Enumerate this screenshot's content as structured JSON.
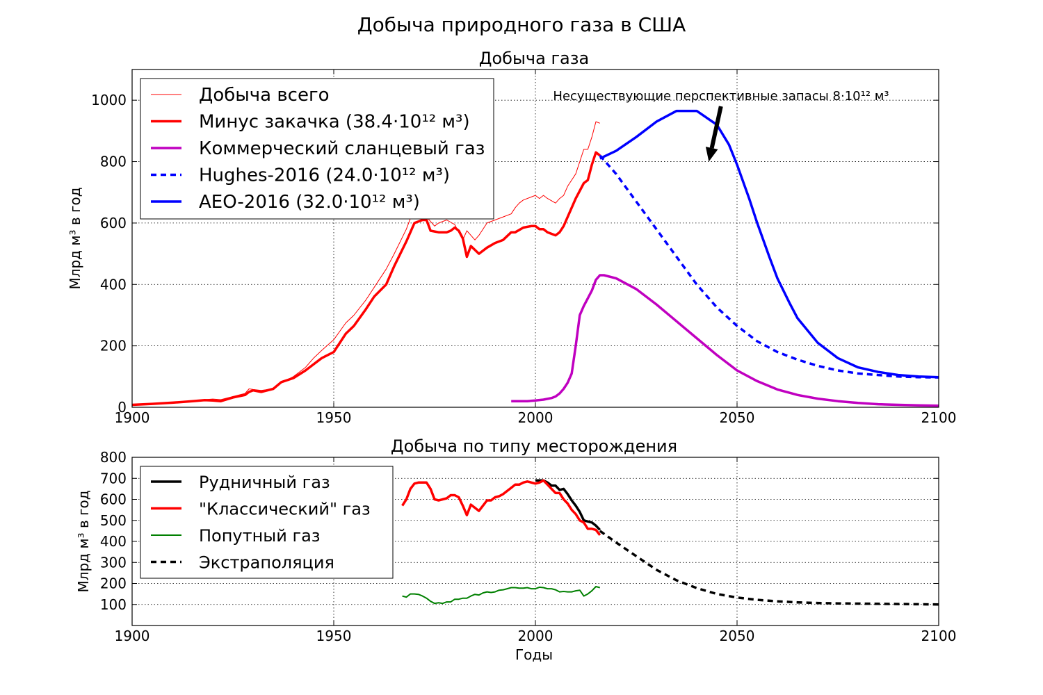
{
  "figure": {
    "title": "Добыча природного газа в США"
  },
  "chart_data": [
    {
      "type": "line",
      "title": "Добыча газа",
      "xlabel": "",
      "ylabel": "Млрд м³ в год",
      "xlim": [
        1900,
        2100
      ],
      "ylim": [
        0,
        1100
      ],
      "xticks": [
        1900,
        1950,
        2000,
        2050,
        2100
      ],
      "yticks": [
        0,
        200,
        400,
        600,
        800,
        1000
      ],
      "grid": true,
      "legend_position": "top-left",
      "annotation": {
        "text": "Несуществующие перспективные запасы 8·10¹² м³",
        "arrow_from": [
          2046,
          980
        ],
        "arrow_to": [
          2043,
          800
        ]
      },
      "series": [
        {
          "name": "Добыча всего",
          "color": "#ff0000",
          "width": 1,
          "dash": "solid",
          "x": [
            1900,
            1905,
            1910,
            1915,
            1918,
            1920,
            1922,
            1925,
            1928,
            1929,
            1930,
            1932,
            1935,
            1937,
            1940,
            1943,
            1945,
            1947,
            1950,
            1953,
            1955,
            1958,
            1960,
            1963,
            1965,
            1968,
            1970,
            1971,
            1972,
            1973,
            1975,
            1976,
            1978,
            1980,
            1982,
            1983,
            1984,
            1985,
            1986,
            1988,
            1990,
            1992,
            1994,
            1995,
            1996,
            1997,
            2000,
            2001,
            2002,
            2003,
            2005,
            2006,
            2007,
            2008,
            2010,
            2012,
            2013,
            2014,
            2015,
            2016
          ],
          "y": [
            8,
            11,
            15,
            20,
            25,
            27,
            25,
            35,
            45,
            60,
            58,
            55,
            60,
            80,
            100,
            130,
            160,
            185,
            220,
            275,
            300,
            350,
            390,
            450,
            500,
            580,
            650,
            640,
            630,
            620,
            590,
            600,
            610,
            595,
            545,
            575,
            560,
            545,
            560,
            600,
            610,
            620,
            630,
            650,
            665,
            675,
            690,
            680,
            690,
            680,
            665,
            680,
            690,
            720,
            760,
            840,
            840,
            880,
            930,
            925
          ]
        },
        {
          "name": "Минус закачка (38.4·10¹² м³)",
          "color": "#ff0000",
          "width": 3.5,
          "dash": "solid",
          "x": [
            1900,
            1905,
            1910,
            1915,
            1918,
            1920,
            1922,
            1925,
            1928,
            1929,
            1930,
            1932,
            1935,
            1937,
            1940,
            1943,
            1945,
            1947,
            1950,
            1953,
            1955,
            1958,
            1960,
            1963,
            1965,
            1968,
            1970,
            1971,
            1972,
            1973,
            1974,
            1976,
            1978,
            1979,
            1980,
            1981,
            1982,
            1983,
            1984,
            1986,
            1988,
            1990,
            1992,
            1994,
            1995,
            1997,
            1999,
            2000,
            2001,
            2002,
            2003,
            2005,
            2006,
            2007,
            2008,
            2010,
            2012,
            2013,
            2014,
            2015,
            2016
          ],
          "y": [
            8,
            11,
            15,
            20,
            23,
            22,
            20,
            32,
            40,
            50,
            55,
            50,
            60,
            82,
            95,
            120,
            140,
            160,
            180,
            240,
            265,
            320,
            360,
            400,
            460,
            540,
            600,
            605,
            610,
            610,
            575,
            570,
            570,
            575,
            585,
            575,
            550,
            490,
            525,
            500,
            520,
            535,
            545,
            570,
            570,
            585,
            590,
            590,
            580,
            580,
            570,
            560,
            570,
            590,
            620,
            680,
            730,
            740,
            790,
            830,
            820
          ]
        },
        {
          "name": "Коммерческий сланцевый газ",
          "color": "#c000c0",
          "width": 3.5,
          "dash": "solid",
          "x": [
            1994,
            1998,
            2000,
            2002,
            2004,
            2005,
            2006,
            2007,
            2008,
            2009,
            2010,
            2011,
            2012,
            2013,
            2014,
            2015,
            2016,
            2017,
            2020,
            2025,
            2030,
            2035,
            2040,
            2045,
            2050,
            2055,
            2060,
            2065,
            2070,
            2075,
            2080,
            2085,
            2090,
            2095,
            2100
          ],
          "y": [
            20,
            20,
            22,
            25,
            30,
            35,
            45,
            60,
            80,
            110,
            200,
            300,
            330,
            355,
            380,
            415,
            430,
            430,
            420,
            385,
            335,
            280,
            225,
            170,
            120,
            85,
            58,
            40,
            28,
            20,
            14,
            10,
            8,
            6,
            5
          ]
        },
        {
          "name": "Hughes-2016 (24.0·10¹² м³)",
          "color": "#0000ff",
          "width": 3.5,
          "dash": "dashed",
          "x": [
            2016,
            2020,
            2025,
            2030,
            2035,
            2040,
            2045,
            2050,
            2055,
            2060,
            2065,
            2070,
            2075,
            2080,
            2085,
            2090,
            2095,
            2100
          ],
          "y": [
            820,
            760,
            670,
            580,
            490,
            400,
            325,
            265,
            215,
            180,
            155,
            135,
            120,
            110,
            105,
            100,
            98,
            97
          ]
        },
        {
          "name": "AEO-2016 (32.0·10¹² м³)",
          "color": "#0000ff",
          "width": 3.5,
          "dash": "solid",
          "x": [
            2016,
            2020,
            2025,
            2030,
            2035,
            2040,
            2045,
            2048,
            2050,
            2053,
            2055,
            2058,
            2060,
            2063,
            2065,
            2070,
            2075,
            2080,
            2085,
            2090,
            2095,
            2100
          ],
          "y": [
            810,
            835,
            880,
            930,
            965,
            965,
            920,
            855,
            790,
            680,
            600,
            490,
            420,
            340,
            290,
            210,
            160,
            130,
            115,
            105,
            100,
            98
          ]
        }
      ]
    },
    {
      "type": "line",
      "title": "Добыча по типу месторождения",
      "xlabel": "Годы",
      "ylabel": "Млрд м³ в год",
      "xlim": [
        1900,
        2100
      ],
      "ylim": [
        0,
        800
      ],
      "xticks": [
        1900,
        1950,
        2000,
        2050,
        2100
      ],
      "yticks": [
        100,
        200,
        300,
        400,
        500,
        600,
        700,
        800
      ],
      "grid": true,
      "legend_position": "top-left",
      "series": [
        {
          "name": "Рудничный газ",
          "color": "#000000",
          "width": 3.5,
          "dash": "solid",
          "x": [
            2000,
            2002,
            2003,
            2004,
            2005,
            2006,
            2007,
            2008,
            2009,
            2010,
            2011,
            2012,
            2013,
            2014,
            2015,
            2016
          ],
          "y": [
            690,
            690,
            680,
            665,
            665,
            645,
            650,
            625,
            595,
            570,
            540,
            500,
            495,
            490,
            475,
            455
          ]
        },
        {
          "name": "\"Классический\" газ",
          "color": "#ff0000",
          "width": 3.5,
          "dash": "solid",
          "x": [
            1967,
            1968,
            1969,
            1970,
            1971,
            1972,
            1973,
            1974,
            1975,
            1976,
            1977,
            1978,
            1979,
            1980,
            1981,
            1982,
            1983,
            1984,
            1985,
            1986,
            1987,
            1988,
            1989,
            1990,
            1991,
            1992,
            1993,
            1994,
            1995,
            1996,
            1997,
            1998,
            1999,
            2000,
            2001,
            2002,
            2003,
            2004,
            2005,
            2006,
            2007,
            2008,
            2009,
            2010,
            2011,
            2012,
            2013,
            2014,
            2015,
            2016
          ],
          "y": [
            570,
            600,
            650,
            675,
            680,
            680,
            680,
            650,
            600,
            595,
            600,
            605,
            620,
            620,
            610,
            570,
            525,
            575,
            560,
            545,
            570,
            595,
            595,
            610,
            615,
            625,
            640,
            655,
            670,
            670,
            680,
            685,
            680,
            675,
            680,
            690,
            670,
            650,
            630,
            630,
            600,
            580,
            550,
            530,
            500,
            490,
            460,
            460,
            455,
            430
          ]
        },
        {
          "name": "Попутный газ",
          "color": "#008000",
          "width": 2,
          "dash": "solid",
          "x": [
            1967,
            1968,
            1969,
            1970,
            1971,
            1972,
            1973,
            1974,
            1975,
            1976,
            1977,
            1978,
            1979,
            1980,
            1981,
            1982,
            1983,
            1984,
            1985,
            1986,
            1987,
            1988,
            1989,
            1990,
            1991,
            1992,
            1993,
            1994,
            1995,
            1996,
            1997,
            1998,
            1999,
            2000,
            2001,
            2002,
            2003,
            2004,
            2005,
            2006,
            2007,
            2008,
            2009,
            2010,
            2011,
            2012,
            2013,
            2014,
            2015,
            2016
          ],
          "y": [
            140,
            135,
            150,
            150,
            148,
            140,
            130,
            115,
            105,
            108,
            105,
            112,
            112,
            125,
            125,
            130,
            130,
            140,
            148,
            145,
            155,
            160,
            157,
            160,
            168,
            170,
            175,
            180,
            180,
            178,
            178,
            180,
            175,
            175,
            182,
            180,
            175,
            175,
            170,
            160,
            162,
            160,
            160,
            165,
            168,
            140,
            150,
            165,
            185,
            180
          ]
        },
        {
          "name": "Экстраполяция",
          "color": "#000000",
          "width": 3.5,
          "dash": "dashed",
          "x": [
            2016,
            2020,
            2025,
            2030,
            2035,
            2040,
            2045,
            2050,
            2055,
            2060,
            2065,
            2070,
            2075,
            2080,
            2085,
            2090,
            2095,
            2100
          ],
          "y": [
            450,
            395,
            330,
            265,
            215,
            178,
            150,
            133,
            122,
            115,
            110,
            107,
            105,
            104,
            103,
            102,
            101,
            100
          ]
        }
      ]
    }
  ]
}
